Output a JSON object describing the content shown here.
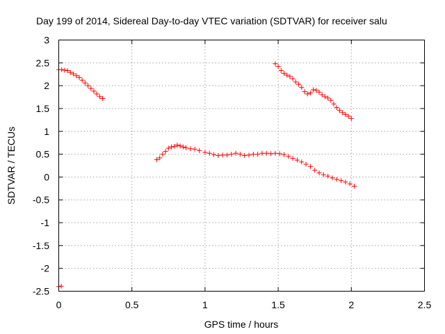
{
  "chart_data": {
    "type": "scatter",
    "title": "Day 199 of 2014, Sidereal Day-to-day VTEC variation (SDTVAR) for receiver salu",
    "xlabel": "GPS time / hours",
    "ylabel": "SDTVAR / TECUs",
    "xlim": [
      0,
      2.5
    ],
    "ylim": [
      -2.5,
      3
    ],
    "xticks": [
      "0",
      "0.5",
      "1",
      "1.5",
      "2",
      "2.5"
    ],
    "yticks": [
      "-2.5",
      "-2",
      "-1.5",
      "-1",
      "-0.5",
      "0",
      "0.5",
      "1",
      "1.5",
      "2",
      "2.5",
      "3"
    ],
    "grid": true,
    "marker": "plus",
    "color": "#ff0000",
    "series": [
      {
        "points": [
          [
            0.0,
            -2.4
          ],
          [
            0.017,
            -2.39
          ],
          [
            0.0,
            2.35
          ],
          [
            0.02,
            2.35
          ],
          [
            0.04,
            2.34
          ],
          [
            0.06,
            2.33
          ],
          [
            0.08,
            2.29
          ],
          [
            0.1,
            2.26
          ],
          [
            0.12,
            2.22
          ],
          [
            0.14,
            2.18
          ],
          [
            0.16,
            2.12
          ],
          [
            0.18,
            2.06
          ],
          [
            0.2,
            2.0
          ],
          [
            0.22,
            1.94
          ],
          [
            0.24,
            1.88
          ],
          [
            0.26,
            1.82
          ],
          [
            0.28,
            1.76
          ],
          [
            0.3,
            1.72
          ],
          [
            0.67,
            0.38
          ],
          [
            0.69,
            0.42
          ],
          [
            0.71,
            0.5
          ],
          [
            0.73,
            0.56
          ],
          [
            0.75,
            0.63
          ],
          [
            0.77,
            0.66
          ],
          [
            0.79,
            0.67
          ],
          [
            0.81,
            0.7
          ],
          [
            0.83,
            0.68
          ],
          [
            0.85,
            0.66
          ],
          [
            0.87,
            0.64
          ],
          [
            0.9,
            0.62
          ],
          [
            0.93,
            0.61
          ],
          [
            0.96,
            0.58
          ],
          [
            1.0,
            0.54
          ],
          [
            1.03,
            0.52
          ],
          [
            1.06,
            0.49
          ],
          [
            1.09,
            0.47
          ],
          [
            1.12,
            0.48
          ],
          [
            1.15,
            0.48
          ],
          [
            1.18,
            0.5
          ],
          [
            1.21,
            0.52
          ],
          [
            1.24,
            0.5
          ],
          [
            1.27,
            0.47
          ],
          [
            1.3,
            0.48
          ],
          [
            1.33,
            0.5
          ],
          [
            1.36,
            0.5
          ],
          [
            1.39,
            0.52
          ],
          [
            1.42,
            0.52
          ],
          [
            1.45,
            0.51
          ],
          [
            1.48,
            0.52
          ],
          [
            1.51,
            0.51
          ],
          [
            1.54,
            0.49
          ],
          [
            1.57,
            0.45
          ],
          [
            1.6,
            0.41
          ],
          [
            1.63,
            0.37
          ],
          [
            1.66,
            0.33
          ],
          [
            1.69,
            0.28
          ],
          [
            1.72,
            0.23
          ],
          [
            1.75,
            0.15
          ],
          [
            1.78,
            0.09
          ],
          [
            1.81,
            0.05
          ],
          [
            1.84,
            0.02
          ],
          [
            1.87,
            -0.02
          ],
          [
            1.9,
            -0.05
          ],
          [
            1.93,
            -0.08
          ],
          [
            1.96,
            -0.11
          ],
          [
            1.99,
            -0.15
          ],
          [
            2.02,
            -0.2
          ],
          [
            1.48,
            2.48
          ],
          [
            1.5,
            2.42
          ],
          [
            1.52,
            2.33
          ],
          [
            1.54,
            2.27
          ],
          [
            1.56,
            2.23
          ],
          [
            1.58,
            2.2
          ],
          [
            1.6,
            2.15
          ],
          [
            1.62,
            2.08
          ],
          [
            1.64,
            2.03
          ],
          [
            1.66,
            1.96
          ],
          [
            1.68,
            1.87
          ],
          [
            1.7,
            1.82
          ],
          [
            1.72,
            1.84
          ],
          [
            1.74,
            1.91
          ],
          [
            1.76,
            1.9
          ],
          [
            1.78,
            1.86
          ],
          [
            1.8,
            1.8
          ],
          [
            1.82,
            1.76
          ],
          [
            1.84,
            1.73
          ],
          [
            1.86,
            1.68
          ],
          [
            1.88,
            1.6
          ],
          [
            1.9,
            1.52
          ],
          [
            1.92,
            1.46
          ],
          [
            1.94,
            1.41
          ],
          [
            1.96,
            1.37
          ],
          [
            1.98,
            1.33
          ],
          [
            2.0,
            1.28
          ]
        ]
      }
    ]
  }
}
